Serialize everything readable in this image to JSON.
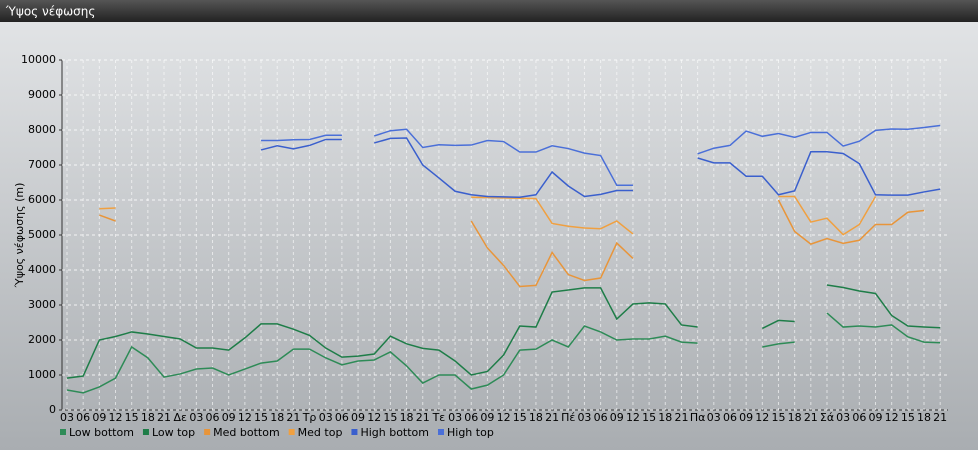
{
  "chart_data": {
    "type": "line",
    "title": "Ύψος νέφωσης",
    "y_label": "Ύψος νέφωσης (m)",
    "categories": [
      "03",
      "06",
      "09",
      "12",
      "15",
      "18",
      "21",
      "Δε",
      "03",
      "06",
      "09",
      "12",
      "15",
      "18",
      "21",
      "Τρ",
      "03",
      "06",
      "09",
      "12",
      "15",
      "18",
      "21",
      "Τε",
      "03",
      "06",
      "09",
      "12",
      "15",
      "18",
      "21",
      "Πέ",
      "03",
      "06",
      "09",
      "12",
      "15",
      "18",
      "21",
      "Πα",
      "03",
      "06",
      "09",
      "12",
      "15",
      "18",
      "21",
      "Σά",
      "03",
      "06",
      "09",
      "12",
      "15",
      "18",
      "21"
    ],
    "ylim": [
      0,
      10000
    ],
    "yticks": [
      0,
      1000,
      2000,
      3000,
      4000,
      5000,
      6000,
      7000,
      8000,
      9000,
      10000
    ],
    "grid": true,
    "legend": "bottom",
    "series": [
      {
        "name": "Low bottom",
        "color": "#2e8b57",
        "values": [
          570,
          490,
          660,
          910,
          1800,
          1490,
          940,
          1030,
          1170,
          1200,
          1000,
          1170,
          1340,
          1400,
          1740,
          1740,
          1490,
          1290,
          1400,
          1430,
          1660,
          1260,
          770,
          1000,
          1000,
          600,
          710,
          1000,
          1710,
          1740,
          2000,
          1800,
          2400,
          2230,
          2000,
          2030,
          2030,
          2110,
          1940,
          1910,
          null,
          null,
          null,
          1800,
          1890,
          1940,
          null,
          2770,
          2370,
          2400,
          2370,
          2430,
          2090,
          1940,
          1920
        ]
      },
      {
        "name": "Low top",
        "color": "#1e7d48",
        "values": [
          910,
          970,
          2000,
          2100,
          2230,
          2170,
          2100,
          2030,
          1770,
          1770,
          1710,
          2060,
          2460,
          2460,
          2310,
          2130,
          1770,
          1510,
          1540,
          1600,
          2110,
          1890,
          1760,
          1710,
          1400,
          1000,
          1100,
          1570,
          2400,
          2370,
          3370,
          3430,
          3490,
          3490,
          2600,
          3030,
          3060,
          3030,
          2430,
          2370,
          null,
          null,
          null,
          2330,
          2560,
          2530,
          null,
          3570,
          3500,
          3400,
          3330,
          2700,
          2400,
          2370,
          2350
        ]
      },
      {
        "name": "Med bottom",
        "color": "#e8953a",
        "values": [
          null,
          null,
          5570,
          5400,
          null,
          null,
          null,
          null,
          null,
          null,
          null,
          null,
          null,
          null,
          null,
          null,
          null,
          null,
          null,
          null,
          null,
          null,
          null,
          null,
          null,
          5400,
          4630,
          4130,
          3530,
          3560,
          4500,
          3870,
          3700,
          3770,
          4770,
          4330,
          null,
          null,
          null,
          null,
          null,
          null,
          null,
          null,
          6000,
          5100,
          4740,
          4900,
          4760,
          4850,
          5300,
          5300,
          5650,
          5700,
          null
        ]
      },
      {
        "name": "Med top",
        "color": "#f0a040",
        "values": [
          null,
          null,
          5750,
          5770,
          null,
          null,
          null,
          null,
          null,
          null,
          null,
          null,
          null,
          null,
          null,
          null,
          null,
          null,
          null,
          null,
          null,
          null,
          null,
          null,
          null,
          6080,
          6070,
          6060,
          6050,
          6040,
          5330,
          5250,
          5200,
          5180,
          5400,
          5030,
          null,
          null,
          null,
          null,
          null,
          null,
          null,
          null,
          6100,
          6100,
          5370,
          5480,
          5010,
          5300,
          6100,
          null,
          null,
          null,
          null
        ]
      },
      {
        "name": "High bottom",
        "color": "#3a5fcd",
        "values": [
          null,
          null,
          null,
          null,
          null,
          null,
          null,
          null,
          null,
          null,
          null,
          null,
          7430,
          7550,
          7460,
          7560,
          7730,
          7730,
          null,
          7630,
          7760,
          7770,
          7000,
          6630,
          6250,
          6150,
          6100,
          6090,
          6080,
          6150,
          6800,
          6400,
          6100,
          6160,
          6270,
          6270,
          null,
          null,
          null,
          7200,
          7060,
          7060,
          6680,
          6680,
          6150,
          6260,
          7380,
          7380,
          7330,
          7040,
          6150,
          6140,
          6140,
          6230,
          6310
        ]
      },
      {
        "name": "High top",
        "color": "#4a6fd8",
        "values": [
          null,
          null,
          null,
          null,
          null,
          null,
          null,
          null,
          null,
          null,
          null,
          null,
          7700,
          7700,
          7720,
          7730,
          7850,
          7850,
          null,
          7830,
          7980,
          8020,
          7500,
          7580,
          7560,
          7570,
          7700,
          7670,
          7370,
          7370,
          7550,
          7470,
          7340,
          7270,
          6420,
          6420,
          null,
          null,
          null,
          7320,
          7480,
          7560,
          7970,
          7820,
          7900,
          7790,
          7930,
          7930,
          7540,
          7680,
          7990,
          8030,
          8020,
          8070,
          8130
        ]
      }
    ]
  }
}
